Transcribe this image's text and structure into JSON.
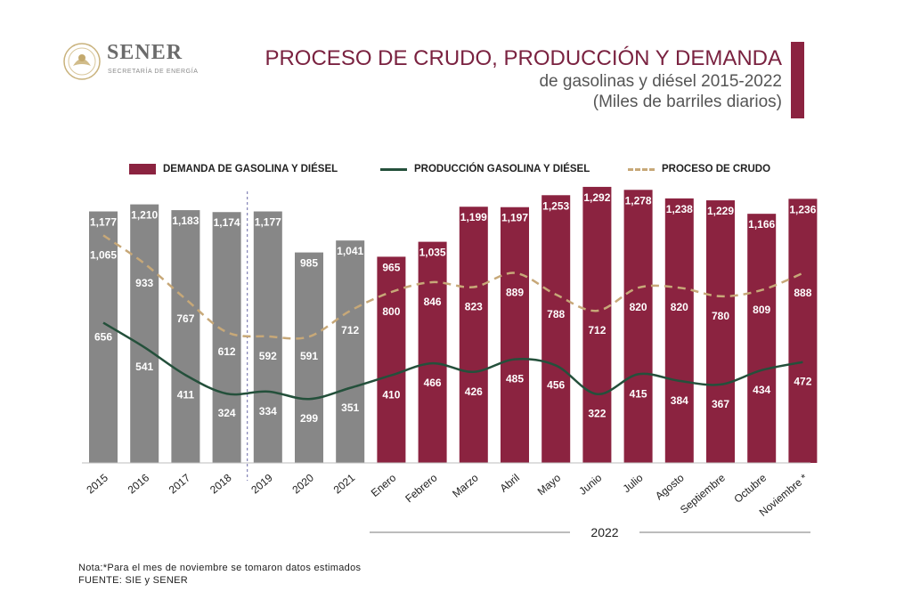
{
  "header": {
    "logo_name": "SENER",
    "logo_sub": "SECRETARÍA DE ENERGÍA",
    "title": "PROCESO DE CRUDO, PRODUCCIÓN Y DEMANDA",
    "subtitle": "de gasolinas y diésel 2015-2022",
    "unit": "(Miles de barriles diarios)"
  },
  "colors": {
    "annual_bar": "#878787",
    "monthly_bar": "#8b2340",
    "production_line": "#24503b",
    "crude_line": "#c7a878",
    "title": "#7a2240"
  },
  "legend": {
    "demand": "DEMANDA DE GASOLINA Y DIÉSEL",
    "production": "PRODUCCIÓN GASOLINA Y DIÉSEL",
    "crude": "PROCESO DE CRUDO"
  },
  "year_group_label": "2022",
  "notes": {
    "note": "Nota:*Para el mes de noviembre se tomaron datos estimados",
    "source": "FUENTE: SIE y SENER"
  },
  "chart_data": {
    "type": "bar",
    "categories": [
      "2015",
      "2016",
      "2017",
      "2018",
      "2019",
      "2020",
      "2021",
      "Enero",
      "Febrero",
      "Marzo",
      "Abril",
      "Mayo",
      "Junio",
      "Julio",
      "Agosto",
      "Septiembre",
      "Octubre",
      "Noviembre *"
    ],
    "series": [
      {
        "name": "DEMANDA DE GASOLINA Y DIÉSEL",
        "kind": "bar",
        "values": [
          1177,
          1210,
          1183,
          1174,
          1177,
          985,
          1041,
          965,
          1035,
          1199,
          1197,
          1253,
          1292,
          1278,
          1238,
          1229,
          1166,
          1236
        ]
      },
      {
        "name": "PRODUCCIÓN GASOLINA Y DIÉSEL",
        "kind": "line",
        "values": [
          656,
          541,
          411,
          324,
          334,
          299,
          351,
          410,
          466,
          426,
          485,
          456,
          322,
          415,
          384,
          367,
          434,
          472
        ]
      },
      {
        "name": "PROCESO DE CRUDO",
        "kind": "dashed-line",
        "values": [
          1065,
          933,
          767,
          612,
          592,
          591,
          712,
          800,
          846,
          823,
          889,
          788,
          712,
          820,
          820,
          780,
          809,
          888
        ]
      }
    ],
    "ylim": [
      0,
      1300
    ],
    "grid": false,
    "legend_position": "top"
  }
}
